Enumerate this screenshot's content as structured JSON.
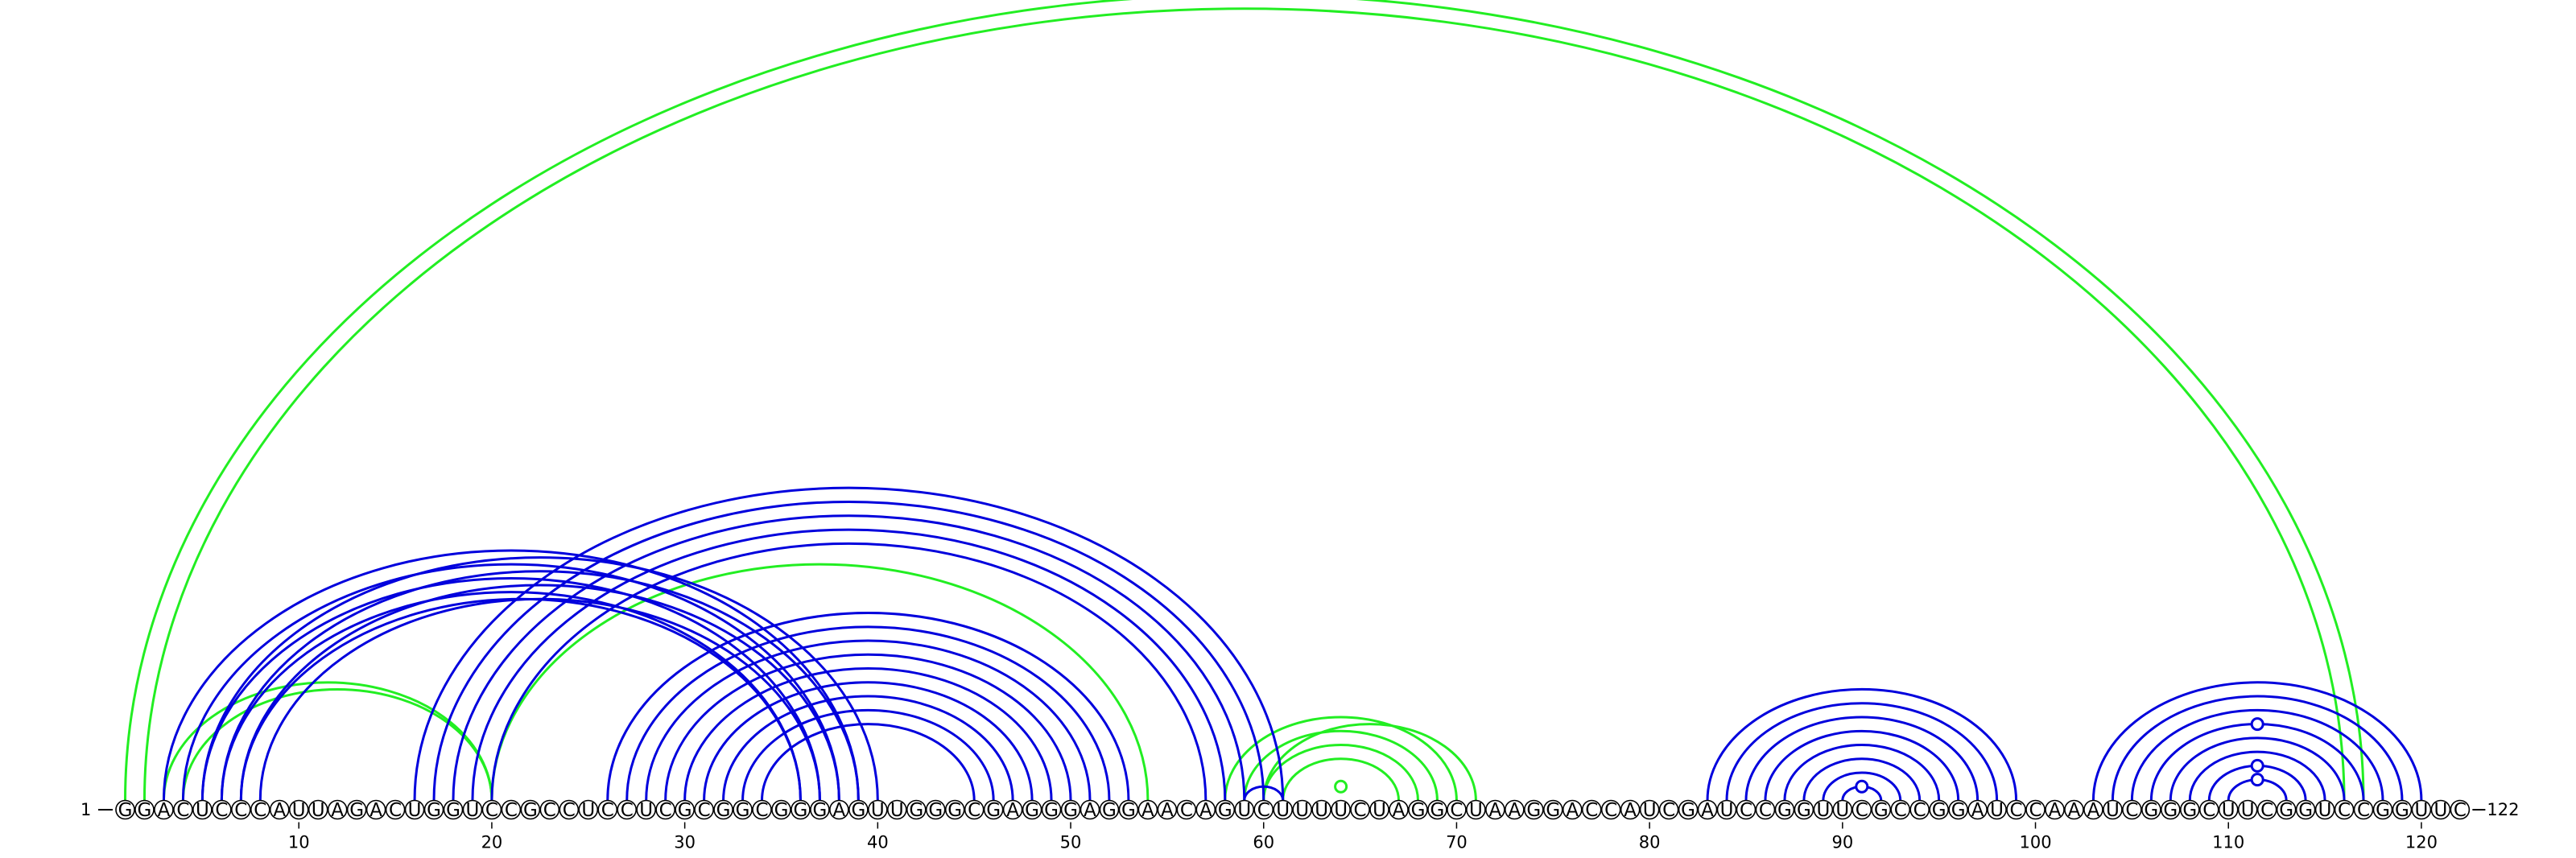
{
  "sequence": "GGACUCCCAUUAGACUGGUCCGCCUCCUCGCGGCGGGAGUUGGGCGAGGGAGGAACAGUCUUUUCUAGGCUAAGGACCAUCGAUCCGGUUCGCCGGAUCCAAAUCGGGCUUCGGUCCGGUUC",
  "start_label": "1",
  "end_label": "122",
  "ticks": [
    10,
    20,
    30,
    40,
    50,
    60,
    70,
    80,
    90,
    100,
    110,
    120
  ],
  "colors": {
    "canonical": "#0000dd",
    "noncanonical": "#22ee22",
    "ink": "#000000"
  },
  "blue_arcs": [
    [
      3,
      39
    ],
    [
      4,
      38
    ],
    [
      5,
      37
    ],
    [
      6,
      36
    ],
    [
      7,
      36
    ],
    [
      5,
      40
    ],
    [
      6,
      39
    ],
    [
      7,
      38
    ],
    [
      8,
      37
    ],
    [
      16,
      61
    ],
    [
      17,
      60
    ],
    [
      18,
      59
    ],
    [
      19,
      58
    ],
    [
      20,
      57
    ],
    [
      26,
      53
    ],
    [
      27,
      52
    ],
    [
      28,
      51
    ],
    [
      29,
      50
    ],
    [
      30,
      49
    ],
    [
      31,
      48
    ],
    [
      32,
      47
    ],
    [
      33,
      46
    ],
    [
      34,
      45
    ],
    [
      59,
      61
    ],
    [
      83,
      99
    ],
    [
      84,
      98
    ],
    [
      85,
      97
    ],
    [
      86,
      96
    ],
    [
      87,
      95
    ],
    [
      88,
      94
    ],
    [
      89,
      93
    ],
    [
      90,
      92
    ],
    [
      103,
      120
    ],
    [
      104,
      119
    ],
    [
      105,
      118
    ],
    [
      106,
      117
    ],
    [
      107,
      116
    ],
    [
      108,
      115
    ],
    [
      109,
      114
    ],
    [
      110,
      113
    ]
  ],
  "green_arcs": [
    [
      1,
      117
    ],
    [
      2,
      116
    ],
    [
      3,
      20
    ],
    [
      4,
      20
    ],
    [
      20,
      54
    ],
    [
      58,
      70
    ],
    [
      59,
      69
    ],
    [
      60,
      68
    ],
    [
      61,
      67
    ],
    [
      60,
      71
    ]
  ],
  "markers": [
    {
      "between": [
        63,
        65
      ],
      "color": "noncanonical"
    },
    {
      "between": [
        90,
        92
      ],
      "color": "canonical"
    },
    {
      "between": [
        110,
        113
      ],
      "color": "canonical"
    },
    {
      "between": [
        109,
        114
      ],
      "color": "canonical"
    },
    {
      "between": [
        106,
        117
      ],
      "color": "canonical"
    }
  ]
}
